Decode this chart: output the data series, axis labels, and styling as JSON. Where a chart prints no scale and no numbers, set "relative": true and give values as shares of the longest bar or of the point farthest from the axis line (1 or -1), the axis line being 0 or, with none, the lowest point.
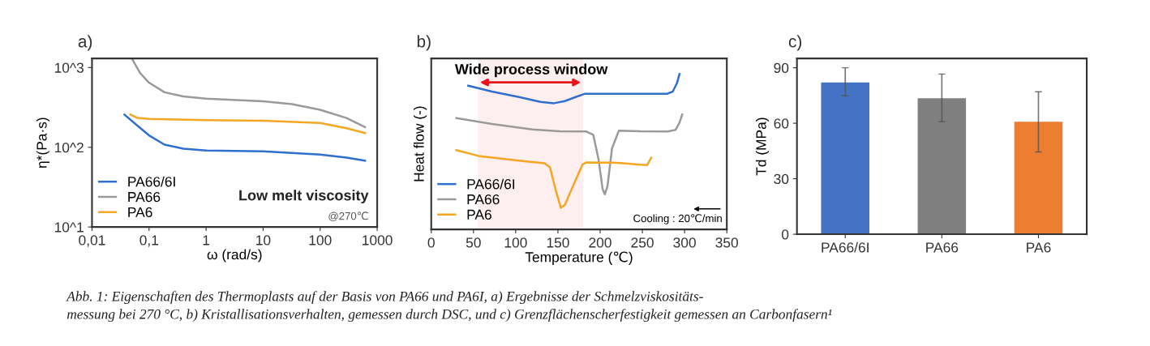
{
  "chart_data": [
    {
      "type": "line",
      "title": "a)",
      "xlabel": "ω (rad/s)",
      "ylabel": "η*(Pa·s)",
      "log": "xy",
      "xlim": [
        0.01,
        1000
      ],
      "ylim": [
        10,
        1300
      ],
      "xticks": [
        {
          "value": 0.01,
          "label": "0,01"
        },
        {
          "value": 0.1,
          "label": "0,1"
        },
        1,
        10,
        100,
        1000
      ],
      "yticks": [
        {
          "value": 10,
          "label": "10^1"
        },
        {
          "value": 100,
          "label": "10^2"
        },
        {
          "value": 1000,
          "label": "10^3"
        }
      ],
      "legend": "bottom left",
      "grid": false,
      "annotations": [
        "Low melt viscosity",
        "@270℃"
      ],
      "series": [
        {
          "name": "PA66/6I",
          "color": "#2e6fd0",
          "x": [
            0.037,
            0.063,
            0.1,
            0.187,
            0.4,
            1,
            10,
            100,
            290,
            611
          ],
          "values": [
            257,
            186,
            141,
            108,
            96,
            91,
            89,
            81,
            74,
            68
          ]
        },
        {
          "name": "PA66",
          "color": "#9a9a9a",
          "x": [
            0.05,
            0.07,
            0.1,
            0.187,
            0.4,
            1,
            10,
            32,
            100,
            290,
            611
          ],
          "values": [
            1300,
            851,
            646,
            490,
            434,
            407,
            377,
            347,
            295,
            233,
            179
          ]
        },
        {
          "name": "PA6",
          "color": "#f5a623",
          "x": [
            0.047,
            0.063,
            0.1,
            1,
            10,
            100,
            290,
            611
          ],
          "values": [
            257,
            233,
            227,
            219,
            215,
            202,
            173,
            151
          ]
        }
      ]
    },
    {
      "type": "line",
      "title": "b)",
      "xlabel": "Temperature (℃)",
      "ylabel": "Heat flow (-)",
      "relative": true,
      "xlim": [
        0,
        350
      ],
      "xticks": [
        0,
        50,
        100,
        150,
        200,
        250,
        300,
        350
      ],
      "tick_labels": "x",
      "legend": "bottom left",
      "grid": false,
      "annotations": [
        "Cooling : 20℃/min"
      ],
      "bands": [
        {
          "axis": "x",
          "from": 55,
          "to": 180,
          "label": "Wide process window",
          "color": "#e8141c"
        }
      ],
      "series": [
        {
          "name": "PA66/6I",
          "color": "#2e6fd0",
          "x": [
            43.8,
            71.9,
            103.9,
            129.4,
            145.4,
            158.2,
            171,
            182.2,
            199.7,
            247.7,
            279.6,
            286,
            290.8,
            294
          ],
          "values": [
            0.925,
            0.887,
            0.852,
            0.821,
            0.812,
            0.826,
            0.852,
            0.873,
            0.873,
            0.873,
            0.873,
            0.887,
            0.939,
            1.0
          ]
        },
        {
          "name": "PA66",
          "color": "#9a9a9a",
          "x": [
            29.7,
            71.9,
            119.8,
            151.8,
            183.8,
            191.8,
            198.1,
            202.9,
            205.5,
            208.7,
            214.1,
            222.1,
            247.7,
            279.6,
            289.2,
            294,
            297.2
          ],
          "values": [
            0.717,
            0.678,
            0.643,
            0.631,
            0.63,
            0.609,
            0.452,
            0.261,
            0.226,
            0.278,
            0.522,
            0.635,
            0.631,
            0.63,
            0.64,
            0.687,
            0.739
          ]
        },
        {
          "name": "PA6",
          "color": "#f5a623",
          "x": [
            29.7,
            55.9,
            103.9,
            134.2,
            140.6,
            147,
            153.4,
            158.2,
            167.8,
            179,
            183.8,
            215.7,
            247.7,
            255.7,
            260.5
          ],
          "values": [
            0.51,
            0.473,
            0.443,
            0.426,
            0.4,
            0.261,
            0.139,
            0.157,
            0.278,
            0.417,
            0.431,
            0.43,
            0.417,
            0.414,
            0.461
          ]
        }
      ]
    },
    {
      "type": "bar",
      "title": "c)",
      "ylabel": "Td (MPa)",
      "categories": [
        "PA66/6I",
        "PA66",
        "PA6"
      ],
      "values": [
        82,
        73.5,
        60.8
      ],
      "colors": [
        "#4472c4",
        "#7f7f7f",
        "#ed7d31"
      ],
      "errors": [
        [
          74.8,
          90
        ],
        [
          60.8,
          86.6
        ],
        [
          44.5,
          77
        ]
      ],
      "ylim": [
        0,
        95
      ],
      "yticks": [
        0,
        30,
        60,
        90
      ],
      "grid": false,
      "annotations": [
        "Abb. 1: Eigenschaften des Thermoplasts auf der Basis von PA66 und PA6I, a) Ergebnisse der Schmelzviskositäts-\nmessung bei 270 °C, b) Kristallisationsverhalten, gemessen durch DSC, und c) Grenzflächenscherfestigkeit gemessen an Carbonfasern¹"
      ]
    }
  ]
}
